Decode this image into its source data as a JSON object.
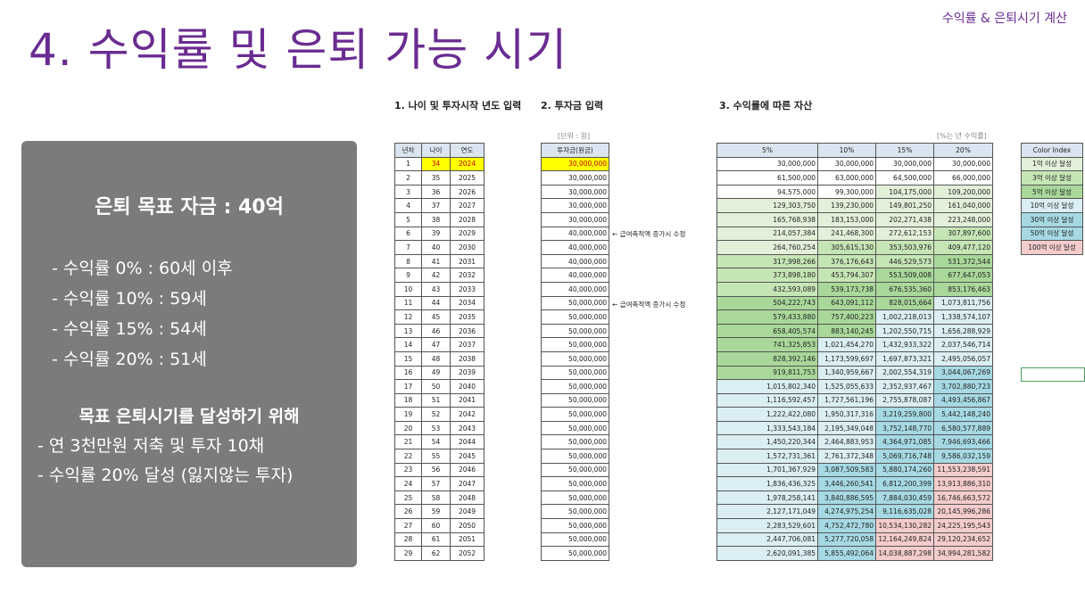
{
  "slide": {
    "title": "4. 수익률 및 은퇴 가능 시기",
    "corner_label": "수익률 & 은퇴시기 계산"
  },
  "summary": {
    "goal": "은퇴 목표 자금 : 40억",
    "rates": [
      "- 수익률    0% : 60세 이후",
      "- 수익률 10% : 59세",
      "- 수익률 15% : 54세",
      "- 수익률 20% : 51세"
    ],
    "plan_title": "목표 은퇴시기를 달성하기 위해",
    "plan_items": [
      "- 연 3천만원 저축 및 투자 10채",
      "- 수익률 20% 달성 (잃지않는 투자)"
    ]
  },
  "sections": {
    "age_input": "1. 나이 및 투자시작 년도 입력",
    "invest_input": "2. 투자금 입력",
    "asset_by_rate": "3. 수익률에 따른 자산",
    "unit_note": "[단위 : 원]",
    "rate_note": "[%는 년 수익률]"
  },
  "age_table": {
    "headers": [
      "년차",
      "나이",
      "연도"
    ],
    "rows": [
      [
        "1",
        "34",
        "2024"
      ],
      [
        "2",
        "35",
        "2025"
      ],
      [
        "3",
        "36",
        "2026"
      ],
      [
        "4",
        "37",
        "2027"
      ],
      [
        "5",
        "38",
        "2028"
      ],
      [
        "6",
        "39",
        "2029"
      ],
      [
        "7",
        "40",
        "2030"
      ],
      [
        "8",
        "41",
        "2031"
      ],
      [
        "9",
        "42",
        "2032"
      ],
      [
        "10",
        "43",
        "2033"
      ],
      [
        "11",
        "44",
        "2034"
      ],
      [
        "12",
        "45",
        "2035"
      ],
      [
        "13",
        "46",
        "2036"
      ],
      [
        "14",
        "47",
        "2037"
      ],
      [
        "15",
        "48",
        "2038"
      ],
      [
        "16",
        "49",
        "2039"
      ],
      [
        "17",
        "50",
        "2040"
      ],
      [
        "18",
        "51",
        "2041"
      ],
      [
        "19",
        "52",
        "2042"
      ],
      [
        "20",
        "53",
        "2043"
      ],
      [
        "21",
        "54",
        "2044"
      ],
      [
        "22",
        "55",
        "2045"
      ],
      [
        "23",
        "56",
        "2046"
      ],
      [
        "24",
        "57",
        "2047"
      ],
      [
        "25",
        "58",
        "2048"
      ],
      [
        "26",
        "59",
        "2049"
      ],
      [
        "27",
        "60",
        "2050"
      ],
      [
        "28",
        "61",
        "2051"
      ],
      [
        "29",
        "62",
        "2052"
      ]
    ]
  },
  "invest_table": {
    "header": "투자금(원금)",
    "rows": [
      "30,000,000",
      "30,000,000",
      "30,000,000",
      "30,000,000",
      "30,000,000",
      "40,000,000",
      "40,000,000",
      "40,000,000",
      "40,000,000",
      "40,000,000",
      "50,000,000",
      "50,000,000",
      "50,000,000",
      "50,000,000",
      "50,000,000",
      "50,000,000",
      "50,000,000",
      "50,000,000",
      "50,000,000",
      "50,000,000",
      "50,000,000",
      "50,000,000",
      "50,000,000",
      "50,000,000",
      "50,000,000",
      "50,000,000",
      "50,000,000",
      "50,000,000",
      "50,000,000"
    ],
    "note_1": "← 급여축적액 증가시 수정",
    "note_2": "← 급여축적액 증가시 수정"
  },
  "asset_table": {
    "headers": [
      "5%",
      "10%",
      "15%",
      "20%"
    ],
    "rows": [
      [
        "30,000,000",
        "30,000,000",
        "30,000,000",
        "30,000,000"
      ],
      [
        "61,500,000",
        "63,000,000",
        "64,500,000",
        "66,000,000"
      ],
      [
        "94,575,000",
        "99,300,000",
        "104,175,000",
        "109,200,000"
      ],
      [
        "129,303,750",
        "139,230,000",
        "149,801,250",
        "161,040,000"
      ],
      [
        "165,768,938",
        "183,153,000",
        "202,271,438",
        "223,248,000"
      ],
      [
        "214,057,384",
        "241,468,300",
        "272,612,153",
        "307,897,600"
      ],
      [
        "264,760,254",
        "305,615,130",
        "353,503,976",
        "409,477,120"
      ],
      [
        "317,998,266",
        "376,176,643",
        "446,529,573",
        "531,372,544"
      ],
      [
        "373,898,180",
        "453,794,307",
        "553,509,008",
        "677,647,053"
      ],
      [
        "432,593,089",
        "539,173,738",
        "676,535,360",
        "853,176,463"
      ],
      [
        "504,222,743",
        "643,091,112",
        "828,015,664",
        "1,073,811,756"
      ],
      [
        "579,433,880",
        "757,400,223",
        "1,002,218,013",
        "1,338,574,107"
      ],
      [
        "658,405,574",
        "883,140,245",
        "1,202,550,715",
        "1,656,288,929"
      ],
      [
        "741,325,853",
        "1,021,454,270",
        "1,432,933,322",
        "2,037,546,714"
      ],
      [
        "828,392,146",
        "1,173,599,697",
        "1,697,873,321",
        "2,495,056,057"
      ],
      [
        "919,811,753",
        "1,340,959,667",
        "2,002,554,319",
        "3,044,067,269"
      ],
      [
        "1,015,802,340",
        "1,525,055,633",
        "2,352,937,467",
        "3,702,880,723"
      ],
      [
        "1,116,592,457",
        "1,727,561,196",
        "2,755,878,087",
        "4,493,456,867"
      ],
      [
        "1,222,422,080",
        "1,950,317,316",
        "3,219,259,800",
        "5,442,148,240"
      ],
      [
        "1,333,543,184",
        "2,195,349,048",
        "3,752,148,770",
        "6,580,577,889"
      ],
      [
        "1,450,220,344",
        "2,464,883,953",
        "4,364,971,085",
        "7,946,693,466"
      ],
      [
        "1,572,731,361",
        "2,761,372,348",
        "5,069,716,748",
        "9,586,032,159"
      ],
      [
        "1,701,367,929",
        "3,087,509,583",
        "5,880,174,260",
        "11,553,238,591"
      ],
      [
        "1,836,436,325",
        "3,446,260,541",
        "6,812,200,399",
        "13,913,886,310"
      ],
      [
        "1,978,258,141",
        "3,840,886,595",
        "7,884,030,459",
        "16,746,663,572"
      ],
      [
        "2,127,171,049",
        "4,274,975,254",
        "9,116,635,028",
        "20,145,996,286"
      ],
      [
        "2,283,529,601",
        "4,752,472,780",
        "10,534,130,282",
        "24,225,195,543"
      ],
      [
        "2,447,706,081",
        "5,277,720,058",
        "12,164,249,824",
        "29,120,234,652"
      ],
      [
        "2,620,091,385",
        "5,855,492,064",
        "14,038,887,298",
        "34,994,281,582"
      ]
    ]
  },
  "color_index": {
    "header": "Color Index",
    "items": [
      "1억 이상 달성",
      "3억 이상 달성",
      "5억 이상 달성",
      "10억 이상 달성",
      "30억 이상 달성",
      "50억 이상 달성",
      "100억 이상 달성"
    ],
    "colors": [
      "#e2f0d9",
      "#c6e5b5",
      "#a9d89a",
      "#daeef3",
      "#a6d9e3",
      "#a6d9e3",
      "#f4cccc"
    ]
  }
}
